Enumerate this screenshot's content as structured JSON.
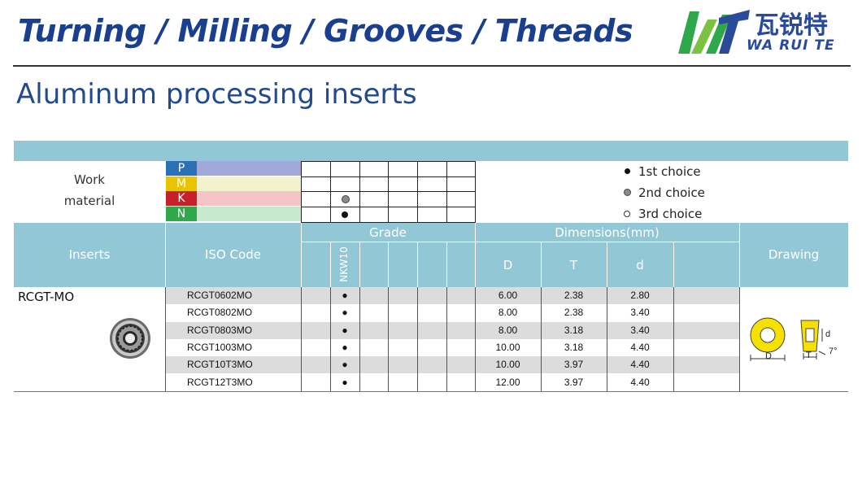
{
  "header": {
    "title": "Turning / Milling / Grooves / Threads",
    "logo_cn": "瓦锐特",
    "logo_en": "WA RUI TE"
  },
  "subtitle": "Aluminum processing inserts",
  "work_material": {
    "label_line1": "Work",
    "label_line2": "material",
    "rows": [
      {
        "letter": "P",
        "color": "#2b6fb5",
        "bar": "#9fa8d8"
      },
      {
        "letter": "M",
        "color": "#e9c400",
        "bar": "#f2f2cc"
      },
      {
        "letter": "K",
        "color": "#c8202a",
        "bar": "#f6c4c6"
      },
      {
        "letter": "N",
        "color": "#2ea84a",
        "bar": "#c9e9cf"
      }
    ]
  },
  "legend": {
    "first": "1st choice",
    "second": "2nd choice",
    "third": "3rd choice"
  },
  "table": {
    "col_inserts": "Inserts",
    "col_iso": "ISO Code",
    "col_grade": "Grade",
    "col_dimensions": "Dimensions(mm)",
    "col_drawing": "Drawing",
    "grade_name": "NKW10",
    "dim_d_upper": "D",
    "dim_t": "T",
    "dim_d_lower": "d",
    "insert_name": "RCGT-MO",
    "rows": [
      {
        "iso": "RCGT0602MO",
        "mark": "●",
        "D": "6.00",
        "T": "2.38",
        "d": "2.80"
      },
      {
        "iso": "RCGT0802MO",
        "mark": "●",
        "D": "8.00",
        "T": "2.38",
        "d": "3.40"
      },
      {
        "iso": "RCGT0803MO",
        "mark": "●",
        "D": "8.00",
        "T": "3.18",
        "d": "3.40"
      },
      {
        "iso": "RCGT1003MO",
        "mark": "●",
        "D": "10.00",
        "T": "3.18",
        "d": "4.40"
      },
      {
        "iso": "RCGT10T3MO",
        "mark": "●",
        "D": "10.00",
        "T": "3.97",
        "d": "4.40"
      },
      {
        "iso": "RCGT12T3MO",
        "mark": "●",
        "D": "12.00",
        "T": "3.97",
        "d": "4.40"
      }
    ]
  },
  "drawing": {
    "label_D": "D",
    "label_T": "T",
    "label_d": "d",
    "angle": "7°",
    "insert_color": "#f5e000"
  }
}
